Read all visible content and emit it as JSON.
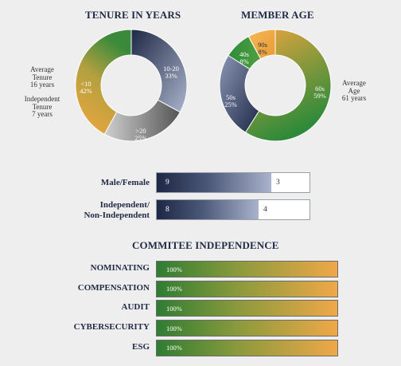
{
  "chart_data": [
    {
      "type": "pie",
      "title": "TENURE IN YEARS",
      "style": "donut",
      "slices": [
        {
          "label": "10-20",
          "value": 33,
          "text": "33%",
          "color": "#384462"
        },
        {
          "label": ">20",
          "value": 25,
          "text": "25%",
          "color": "#6e6e6e"
        },
        {
          "label": "<10",
          "value": 42,
          "text": "42%",
          "color": "#f0a23a"
        }
      ],
      "annotations": [
        {
          "lines": [
            "Average",
            "Tenure",
            "16 years"
          ]
        },
        {
          "lines": [
            "Independent",
            "Tenure",
            "7 years"
          ]
        }
      ]
    },
    {
      "type": "pie",
      "title": "MEMBER AGE",
      "style": "donut",
      "slices": [
        {
          "label": "60s",
          "value": 59,
          "text": "59%",
          "color": "#2e8a3a"
        },
        {
          "label": "50s",
          "value": 25,
          "text": "25%",
          "color": "#2a3552"
        },
        {
          "label": "40s",
          "value": 8,
          "text": "8%",
          "color": "#2e8a3a"
        },
        {
          "label": "90s",
          "value": 8,
          "text": "8%",
          "color": "#f0a23a"
        }
      ],
      "annotations": [
        {
          "lines": [
            "Average",
            "Age",
            "61 years"
          ]
        }
      ]
    },
    {
      "type": "bar",
      "orientation": "horizontal",
      "stacked": true,
      "categories": [
        "Male/Female",
        "Independent/ Non-Independent"
      ],
      "series": [
        {
          "values": [
            9,
            8
          ],
          "color": "#1d2845"
        },
        {
          "values": [
            3,
            4
          ],
          "color": "#ffffff"
        }
      ]
    },
    {
      "type": "bar",
      "orientation": "horizontal",
      "title": "COMMITEE INDEPENDENCE",
      "categories": [
        "NOMINATING",
        "COMPENSATION",
        "AUDIT",
        "CYBERSECURITY",
        "ESG"
      ],
      "values": [
        100,
        100,
        100,
        100,
        100
      ],
      "value_labels": [
        "100%",
        "100%",
        "100%",
        "100%",
        "100%"
      ],
      "xlim": [
        0,
        100
      ]
    }
  ]
}
